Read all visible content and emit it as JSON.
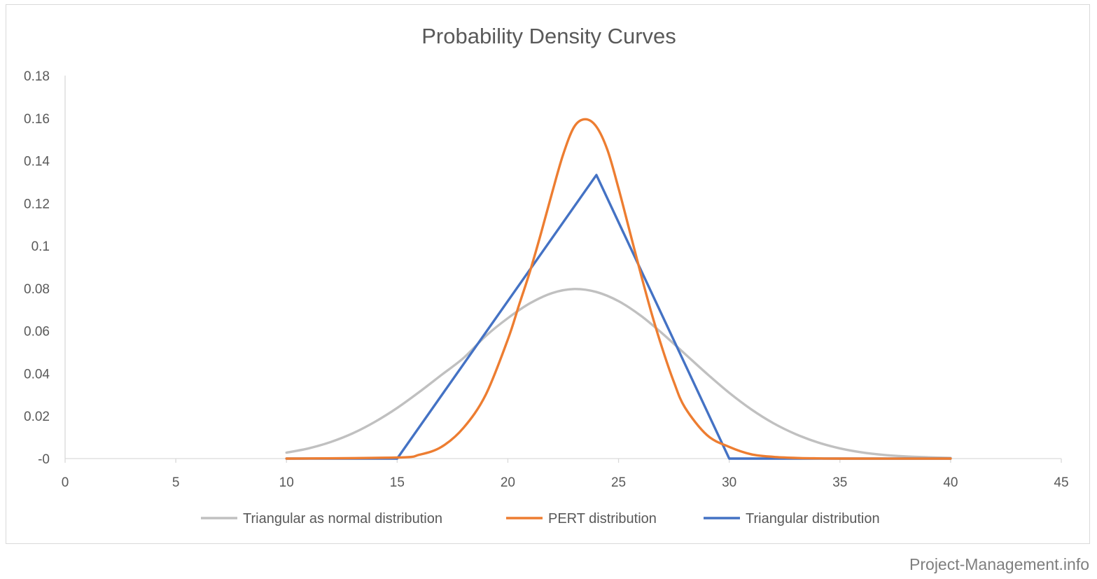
{
  "watermark": "Project-Management.info",
  "chart_data": {
    "type": "line",
    "title": "Probability Density Curves",
    "xlabel": "",
    "ylabel": "",
    "xlim": [
      0,
      45
    ],
    "ylim": [
      0,
      0.18
    ],
    "x_ticks": [
      0,
      5,
      10,
      15,
      20,
      25,
      30,
      35,
      40,
      45
    ],
    "x_tick_labels": [
      "0",
      "5",
      "10",
      "15",
      "20",
      "25",
      "30",
      "35",
      "40",
      "45"
    ],
    "y_ticks": [
      0,
      0.02,
      0.04,
      0.06,
      0.08,
      0.1,
      0.12,
      0.14,
      0.16,
      0.18
    ],
    "y_tick_labels": [
      "-0",
      "0.02",
      "0.04",
      "0.06",
      "0.08",
      "0.1",
      "0.12",
      "0.14",
      "0.16",
      "0.18"
    ],
    "grid": false,
    "legend_position": "bottom",
    "series": [
      {
        "name": "Triangular as normal distribution",
        "color": "#c0c0c0",
        "x": [
          10,
          11,
          12,
          13,
          14,
          15,
          16,
          17,
          18,
          19,
          20,
          21,
          22,
          23,
          24,
          25,
          26,
          27,
          28,
          29,
          30,
          31,
          32,
          33,
          34,
          35,
          36,
          37,
          38,
          39,
          40
        ],
        "y": [
          0.0028,
          0.0048,
          0.0078,
          0.0119,
          0.0173,
          0.0238,
          0.0313,
          0.0393,
          0.0473,
          0.0576,
          0.066,
          0.073,
          0.0778,
          0.0797,
          0.0783,
          0.074,
          0.0672,
          0.0586,
          0.0492,
          0.0398,
          0.0309,
          0.0231,
          0.0166,
          0.0115,
          0.0076,
          0.0048,
          0.0029,
          0.0017,
          0.001,
          0.0006,
          0.0003
        ]
      },
      {
        "name": "PERT distribution",
        "color": "#ed7d31",
        "x": [
          10,
          15,
          16,
          17,
          18,
          19,
          20,
          20.5,
          21,
          21.5,
          22,
          22.5,
          23,
          23.5,
          24,
          24.5,
          25,
          25.5,
          26,
          26.5,
          27,
          27.5,
          28,
          29,
          30,
          31,
          32,
          33,
          34,
          35,
          40
        ],
        "y": [
          0,
          0.0005,
          0.0018,
          0.0055,
          0.0145,
          0.03,
          0.056,
          0.072,
          0.088,
          0.106,
          0.125,
          0.143,
          0.156,
          0.1595,
          0.156,
          0.145,
          0.127,
          0.107,
          0.087,
          0.068,
          0.051,
          0.036,
          0.024,
          0.011,
          0.0055,
          0.002,
          0.0008,
          0.0003,
          0.0001,
          0,
          0
        ]
      },
      {
        "name": "Triangular distribution",
        "color": "#4472c4",
        "x": [
          10,
          15,
          24,
          30,
          40
        ],
        "y": [
          0,
          0,
          0.1333,
          0,
          0
        ]
      }
    ]
  }
}
